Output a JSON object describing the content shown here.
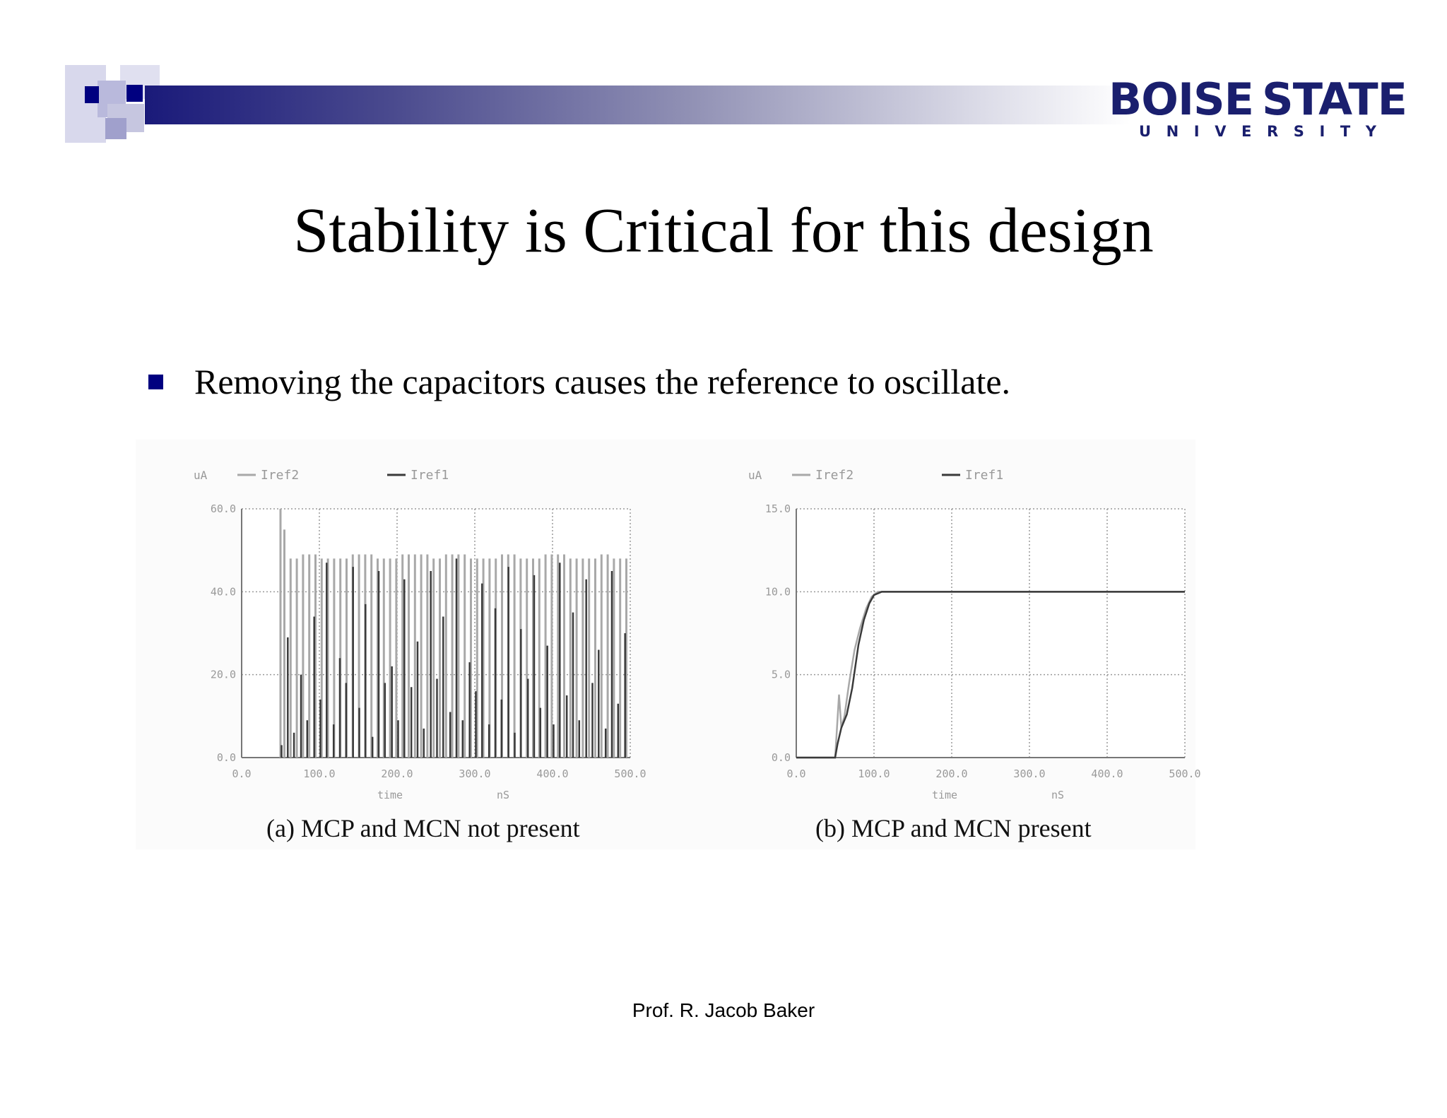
{
  "header": {
    "logo_top_left": "BOISE",
    "logo_top_right": "STATE",
    "logo_bottom_letters": [
      "U",
      "N",
      "I",
      "V",
      "E",
      "R",
      "S",
      "I",
      "T",
      "Y"
    ]
  },
  "slide": {
    "title": "Stability is Critical for this design",
    "bullets": [
      "Removing the capacitors causes the reference to oscillate."
    ]
  },
  "colors": {
    "bullet": "#000080",
    "header_bar_start": "#1a1a7a",
    "logo": "#1a1f6e",
    "iref2": "#a8a8a8",
    "iref1": "#3a3a3a"
  },
  "footer": {
    "text": "Prof. R. Jacob Baker"
  },
  "chart_data": [
    {
      "type": "line",
      "caption": "(a) MCP and MCN not present",
      "ylabel": "uA",
      "xlabel_left": "time",
      "xlabel_right": "nS",
      "xlim": [
        0,
        500
      ],
      "ylim": [
        0,
        60
      ],
      "xticks": [
        "0.0",
        "100.0",
        "200.0",
        "300.0",
        "400.0",
        "500.0"
      ],
      "yticks": [
        "0.0",
        "20.0",
        "40.0",
        "60.0"
      ],
      "grid": true,
      "legend_position": "top",
      "series": [
        {
          "name": "Iref2",
          "x": [
            50,
            55,
            63,
            71,
            79,
            87,
            95,
            103,
            111,
            119,
            127,
            135,
            143,
            151,
            159,
            167,
            175,
            183,
            191,
            199,
            207,
            215,
            223,
            231,
            239,
            247,
            255,
            263,
            271,
            279,
            287,
            295,
            303,
            311,
            319,
            327,
            335,
            343,
            351,
            359,
            367,
            375,
            383,
            391,
            399,
            407,
            415,
            423,
            431,
            439,
            447,
            455,
            463,
            471,
            479,
            487,
            495
          ],
          "y": [
            60,
            55,
            48,
            48,
            49,
            49,
            49,
            48,
            48,
            48,
            48,
            48,
            49,
            49,
            49,
            49,
            48,
            48,
            48,
            48,
            49,
            49,
            49,
            49,
            49,
            48,
            48,
            49,
            49,
            49,
            49,
            48,
            48,
            48,
            48,
            48,
            49,
            49,
            49,
            48,
            48,
            48,
            48,
            49,
            49,
            49,
            49,
            48,
            48,
            48,
            48,
            48,
            49,
            49,
            48,
            48,
            48
          ]
        },
        {
          "name": "Iref1",
          "x": [
            50,
            58,
            66,
            75,
            83,
            92,
            100,
            108,
            117,
            125,
            133,
            142,
            150,
            158,
            167,
            175,
            183,
            192,
            200,
            208,
            217,
            225,
            233,
            242,
            250,
            258,
            267,
            275,
            283,
            292,
            300,
            308,
            317,
            325,
            333,
            342,
            350,
            358,
            367,
            375,
            383,
            392,
            400,
            408,
            417,
            425,
            433,
            442,
            450,
            458,
            467,
            475,
            483,
            492
          ],
          "y": [
            3,
            29,
            6,
            20,
            9,
            34,
            14,
            47,
            8,
            24,
            18,
            46,
            12,
            37,
            5,
            45,
            18,
            22,
            9,
            43,
            17,
            28,
            7,
            45,
            19,
            34,
            11,
            48,
            9,
            23,
            16,
            42,
            8,
            36,
            14,
            46,
            6,
            31,
            19,
            44,
            12,
            27,
            8,
            47,
            15,
            35,
            9,
            43,
            18,
            26,
            7,
            45,
            13,
            30
          ]
        }
      ]
    },
    {
      "type": "line",
      "caption": "(b) MCP and MCN present",
      "ylabel": "uA",
      "xlabel_left": "time",
      "xlabel_right": "nS",
      "xlim": [
        0,
        500
      ],
      "ylim": [
        0,
        15
      ],
      "xticks": [
        "0.0",
        "100.0",
        "200.0",
        "300.0",
        "400.0",
        "500.0"
      ],
      "yticks": [
        "0.0",
        "5.0",
        "10.0",
        "15.0"
      ],
      "grid": true,
      "legend_position": "top",
      "series": [
        {
          "name": "Iref2",
          "x": [
            0,
            50,
            52,
            55,
            58,
            62,
            68,
            75,
            82,
            90,
            97,
            105,
            115,
            125,
            500
          ],
          "y": [
            0,
            0,
            1.5,
            3.8,
            1.8,
            2.5,
            4.5,
            6.5,
            7.8,
            9.0,
            9.7,
            10.0,
            10.0,
            10.0,
            10.0
          ]
        },
        {
          "name": "Iref1",
          "x": [
            0,
            50,
            53,
            58,
            65,
            72,
            80,
            87,
            94,
            100,
            110,
            125,
            500
          ],
          "y": [
            0,
            0,
            0.8,
            1.8,
            2.6,
            4.2,
            6.8,
            8.3,
            9.3,
            9.8,
            10.0,
            10.0,
            10.0
          ]
        }
      ]
    }
  ]
}
